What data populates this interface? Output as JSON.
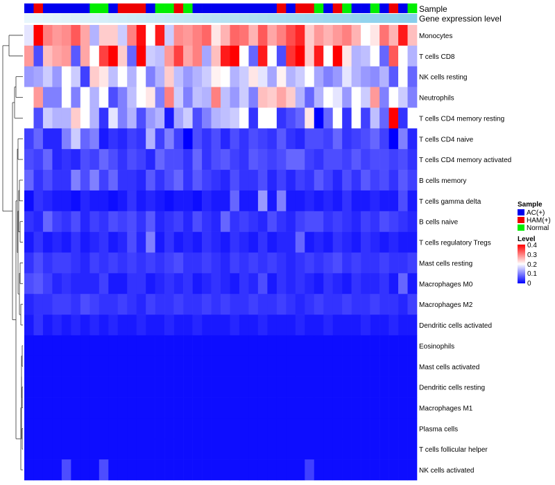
{
  "chart_data": {
    "type": "heatmap",
    "title": "",
    "annotation_labels": {
      "sample": "Sample",
      "gene": "Gene expression level"
    },
    "rows": [
      "Monocytes",
      "T cells CD8",
      "NK cells resting",
      "Neutrophils",
      "T cells CD4 memory resting",
      "T cells CD4 naive",
      "T cells CD4 memory activated",
      "B cells memory",
      "T cells gamma delta",
      "B cells naive",
      "T cells regulatory  Tregs",
      "Mast cells resting",
      "Macrophages M0",
      "Macrophages M2",
      "Dendritic cells activated",
      "Eosinophils",
      "Mast cells activated",
      "Dendritic cells resting",
      "Macrophages M1",
      "Plasma cells",
      "T cells follicular helper",
      "NK cells activated"
    ],
    "sample_groups": [
      "AC(+)",
      "HAM(+)",
      "AC(+)",
      "AC(+)",
      "AC(+)",
      "AC(+)",
      "AC(+)",
      "Normal",
      "Normal",
      "AC(+)",
      "HAM(+)",
      "HAM(+)",
      "HAM(+)",
      "AC(+)",
      "Normal",
      "Normal",
      "HAM(+)",
      "Normal",
      "AC(+)",
      "AC(+)",
      "AC(+)",
      "AC(+)",
      "AC(+)",
      "AC(+)",
      "AC(+)",
      "AC(+)",
      "AC(+)",
      "HAM(+)",
      "AC(+)",
      "HAM(+)",
      "HAM(+)",
      "Normal",
      "AC(+)",
      "HAM(+)",
      "Normal",
      "AC(+)",
      "AC(+)",
      "Normal",
      "AC(+)",
      "HAM(+)",
      "AC(+)",
      "Normal"
    ],
    "values": [
      [
        0.18,
        0.4,
        0.3,
        0.28,
        0.29,
        0.33,
        0.27,
        0.14,
        0.24,
        0.24,
        0.16,
        0.3,
        0.39,
        0.2,
        0.38,
        0.16,
        0.29,
        0.28,
        0.3,
        0.32,
        0.22,
        0.26,
        0.32,
        0.31,
        0.26,
        0.33,
        0.27,
        0.3,
        0.34,
        0.37,
        0.24,
        0.28,
        0.26,
        0.28,
        0.3,
        0.26,
        0.2,
        0.22,
        0.31,
        0.26,
        0.38,
        0.25
      ],
      [
        0.28,
        0.06,
        0.25,
        0.27,
        0.28,
        0.07,
        0.27,
        0.2,
        0.35,
        0.4,
        0.24,
        0.08,
        0.4,
        0.16,
        0.15,
        0.28,
        0.35,
        0.27,
        0.3,
        0.13,
        0.25,
        0.38,
        0.4,
        0.2,
        0.08,
        0.38,
        0.2,
        0.06,
        0.36,
        0.4,
        0.24,
        0.38,
        0.2,
        0.4,
        0.22,
        0.14,
        0.15,
        0.2,
        0.08,
        0.33,
        0.2,
        0.14
      ],
      [
        0.12,
        0.13,
        0.16,
        0.12,
        0.2,
        0.16,
        0.05,
        0.24,
        0.22,
        0.15,
        0.2,
        0.14,
        0.2,
        0.1,
        0.14,
        0.24,
        0.15,
        0.12,
        0.14,
        0.16,
        0.21,
        0.2,
        0.14,
        0.16,
        0.22,
        0.18,
        0.13,
        0.21,
        0.14,
        0.16,
        0.2,
        0.13,
        0.1,
        0.12,
        0.18,
        0.14,
        0.12,
        0.11,
        0.14,
        0.07,
        0.2,
        0.08
      ],
      [
        0.2,
        0.28,
        0.1,
        0.1,
        0.2,
        0.1,
        0.2,
        0.14,
        0.2,
        0.06,
        0.1,
        0.15,
        0.2,
        0.22,
        0.1,
        0.3,
        0.16,
        0.1,
        0.15,
        0.14,
        0.3,
        0.15,
        0.12,
        0.16,
        0.1,
        0.25,
        0.24,
        0.27,
        0.24,
        0.14,
        0.08,
        0.14,
        0.2,
        0.18,
        0.12,
        0.2,
        0.16,
        0.28,
        0.1,
        0.2,
        0.16,
        0.1
      ],
      [
        0.2,
        0.06,
        0.16,
        0.14,
        0.14,
        0.24,
        0.2,
        0.14,
        0.04,
        0.18,
        0.1,
        0.14,
        0.06,
        0.12,
        0.14,
        0.02,
        0.13,
        0.16,
        0.06,
        0.1,
        0.14,
        0.15,
        0.16,
        0.2,
        0.04,
        0.2,
        0.2,
        0.04,
        0.06,
        0.08,
        0.22,
        0.0,
        0.08,
        0.2,
        0.04,
        0.2,
        0.05,
        0.15,
        0.08,
        0.4,
        0.04,
        0.2
      ],
      [
        0.05,
        0.08,
        0.03,
        0.03,
        0.1,
        0.16,
        0.08,
        0.1,
        0.02,
        0.04,
        0.03,
        0.05,
        0.04,
        0.14,
        0.05,
        0.1,
        0.05,
        0.0,
        0.06,
        0.04,
        0.06,
        0.03,
        0.06,
        0.04,
        0.06,
        0.05,
        0.04,
        0.07,
        0.04,
        0.03,
        0.06,
        0.06,
        0.05,
        0.08,
        0.04,
        0.05,
        0.06,
        0.08,
        0.05,
        0.0,
        0.1,
        0.03
      ],
      [
        0.06,
        0.05,
        0.08,
        0.03,
        0.04,
        0.03,
        0.06,
        0.05,
        0.08,
        0.06,
        0.04,
        0.06,
        0.05,
        0.03,
        0.08,
        0.06,
        0.06,
        0.04,
        0.08,
        0.04,
        0.06,
        0.07,
        0.05,
        0.04,
        0.07,
        0.06,
        0.05,
        0.06,
        0.08,
        0.08,
        0.05,
        0.04,
        0.06,
        0.06,
        0.05,
        0.07,
        0.05,
        0.06,
        0.06,
        0.05,
        0.06,
        0.04
      ],
      [
        0.08,
        0.04,
        0.06,
        0.04,
        0.04,
        0.1,
        0.06,
        0.1,
        0.05,
        0.08,
        0.04,
        0.04,
        0.03,
        0.07,
        0.04,
        0.06,
        0.08,
        0.04,
        0.07,
        0.05,
        0.04,
        0.03,
        0.06,
        0.04,
        0.04,
        0.06,
        0.03,
        0.05,
        0.03,
        0.05,
        0.04,
        0.07,
        0.05,
        0.03,
        0.06,
        0.04,
        0.07,
        0.05,
        0.06,
        0.04,
        0.07,
        0.05
      ],
      [
        0.01,
        0.04,
        0.03,
        0.02,
        0.02,
        0.01,
        0.03,
        0.02,
        0.02,
        0.01,
        0.02,
        0.04,
        0.02,
        0.03,
        0.02,
        0.01,
        0.02,
        0.02,
        0.01,
        0.03,
        0.02,
        0.02,
        0.08,
        0.02,
        0.02,
        0.12,
        0.02,
        0.1,
        0.02,
        0.02,
        0.03,
        0.02,
        0.03,
        0.02,
        0.04,
        0.02,
        0.02,
        0.03,
        0.02,
        0.02,
        0.06,
        0.02
      ],
      [
        0.04,
        0.03,
        0.08,
        0.05,
        0.04,
        0.06,
        0.03,
        0.05,
        0.04,
        0.06,
        0.05,
        0.06,
        0.04,
        0.07,
        0.03,
        0.04,
        0.05,
        0.03,
        0.06,
        0.04,
        0.03,
        0.08,
        0.04,
        0.05,
        0.04,
        0.03,
        0.06,
        0.04,
        0.03,
        0.05,
        0.06,
        0.06,
        0.04,
        0.05,
        0.04,
        0.03,
        0.05,
        0.04,
        0.06,
        0.05,
        0.04,
        0.03
      ],
      [
        0.02,
        0.04,
        0.02,
        0.03,
        0.02,
        0.04,
        0.02,
        0.03,
        0.04,
        0.02,
        0.03,
        0.06,
        0.03,
        0.1,
        0.02,
        0.04,
        0.02,
        0.03,
        0.02,
        0.04,
        0.03,
        0.02,
        0.04,
        0.03,
        0.02,
        0.04,
        0.02,
        0.03,
        0.03,
        0.08,
        0.02,
        0.03,
        0.02,
        0.04,
        0.03,
        0.02,
        0.04,
        0.03,
        0.02,
        0.03,
        0.02,
        0.02
      ],
      [
        0.04,
        0.06,
        0.04,
        0.05,
        0.05,
        0.04,
        0.03,
        0.05,
        0.04,
        0.05,
        0.04,
        0.05,
        0.04,
        0.05,
        0.04,
        0.05,
        0.06,
        0.04,
        0.04,
        0.05,
        0.04,
        0.03,
        0.05,
        0.04,
        0.05,
        0.04,
        0.05,
        0.04,
        0.03,
        0.04,
        0.05,
        0.04,
        0.05,
        0.06,
        0.04,
        0.05,
        0.04,
        0.04,
        0.05,
        0.04,
        0.04,
        0.05
      ],
      [
        0.06,
        0.07,
        0.05,
        0.03,
        0.04,
        0.03,
        0.03,
        0.03,
        0.05,
        0.02,
        0.02,
        0.04,
        0.04,
        0.02,
        0.03,
        0.04,
        0.03,
        0.04,
        0.02,
        0.03,
        0.04,
        0.03,
        0.02,
        0.04,
        0.03,
        0.06,
        0.02,
        0.04,
        0.03,
        0.04,
        0.03,
        0.02,
        0.04,
        0.03,
        0.02,
        0.04,
        0.03,
        0.03,
        0.04,
        0.02,
        0.08,
        0.02
      ],
      [
        0.03,
        0.04,
        0.04,
        0.05,
        0.05,
        0.04,
        0.06,
        0.05,
        0.04,
        0.04,
        0.05,
        0.04,
        0.03,
        0.05,
        0.04,
        0.04,
        0.05,
        0.04,
        0.04,
        0.05,
        0.04,
        0.05,
        0.04,
        0.04,
        0.05,
        0.04,
        0.04,
        0.05,
        0.04,
        0.03,
        0.04,
        0.05,
        0.04,
        0.04,
        0.05,
        0.04,
        0.04,
        0.05,
        0.04,
        0.04,
        0.03,
        0.05
      ],
      [
        0.02,
        0.04,
        0.02,
        0.03,
        0.02,
        0.03,
        0.02,
        0.03,
        0.02,
        0.03,
        0.02,
        0.02,
        0.03,
        0.02,
        0.02,
        0.03,
        0.02,
        0.02,
        0.03,
        0.02,
        0.02,
        0.02,
        0.03,
        0.02,
        0.02,
        0.03,
        0.02,
        0.02,
        0.02,
        0.03,
        0.02,
        0.02,
        0.03,
        0.02,
        0.02,
        0.02,
        0.03,
        0.02,
        0.02,
        0.03,
        0.02,
        0.02
      ],
      [
        0.01,
        0.01,
        0.01,
        0.01,
        0.01,
        0.01,
        0.01,
        0.01,
        0.01,
        0.01,
        0.01,
        0.01,
        0.01,
        0.01,
        0.01,
        0.01,
        0.01,
        0.01,
        0.01,
        0.01,
        0.01,
        0.01,
        0.01,
        0.01,
        0.01,
        0.01,
        0.01,
        0.01,
        0.01,
        0.01,
        0.01,
        0.01,
        0.01,
        0.01,
        0.01,
        0.01,
        0.01,
        0.01,
        0.01,
        0.01,
        0.01,
        0.01
      ],
      [
        0.01,
        0.01,
        0.01,
        0.01,
        0.01,
        0.01,
        0.01,
        0.01,
        0.01,
        0.01,
        0.01,
        0.01,
        0.01,
        0.01,
        0.01,
        0.01,
        0.01,
        0.01,
        0.01,
        0.01,
        0.01,
        0.01,
        0.01,
        0.01,
        0.01,
        0.01,
        0.01,
        0.01,
        0.01,
        0.01,
        0.01,
        0.01,
        0.01,
        0.01,
        0.01,
        0.01,
        0.01,
        0.01,
        0.01,
        0.01,
        0.01,
        0.01
      ],
      [
        0.01,
        0.01,
        0.01,
        0.01,
        0.01,
        0.01,
        0.01,
        0.01,
        0.01,
        0.01,
        0.01,
        0.01,
        0.01,
        0.01,
        0.01,
        0.01,
        0.01,
        0.01,
        0.01,
        0.01,
        0.01,
        0.01,
        0.01,
        0.01,
        0.01,
        0.01,
        0.01,
        0.01,
        0.01,
        0.01,
        0.01,
        0.01,
        0.01,
        0.01,
        0.01,
        0.01,
        0.01,
        0.01,
        0.01,
        0.01,
        0.01,
        0.01
      ],
      [
        0.01,
        0.01,
        0.01,
        0.01,
        0.01,
        0.01,
        0.01,
        0.01,
        0.01,
        0.01,
        0.01,
        0.01,
        0.01,
        0.01,
        0.01,
        0.01,
        0.01,
        0.01,
        0.01,
        0.01,
        0.01,
        0.01,
        0.01,
        0.01,
        0.01,
        0.01,
        0.01,
        0.01,
        0.01,
        0.01,
        0.01,
        0.01,
        0.01,
        0.01,
        0.01,
        0.01,
        0.01,
        0.01,
        0.01,
        0.01,
        0.01,
        0.01
      ],
      [
        0.01,
        0.01,
        0.01,
        0.01,
        0.01,
        0.01,
        0.01,
        0.01,
        0.01,
        0.01,
        0.01,
        0.01,
        0.01,
        0.01,
        0.01,
        0.01,
        0.01,
        0.01,
        0.01,
        0.01,
        0.01,
        0.01,
        0.01,
        0.01,
        0.01,
        0.01,
        0.01,
        0.01,
        0.01,
        0.01,
        0.01,
        0.01,
        0.01,
        0.01,
        0.01,
        0.01,
        0.01,
        0.01,
        0.01,
        0.01,
        0.01,
        0.01
      ],
      [
        0.01,
        0.01,
        0.01,
        0.01,
        0.01,
        0.01,
        0.01,
        0.01,
        0.01,
        0.01,
        0.01,
        0.01,
        0.01,
        0.01,
        0.01,
        0.01,
        0.01,
        0.01,
        0.01,
        0.01,
        0.01,
        0.01,
        0.01,
        0.01,
        0.01,
        0.01,
        0.01,
        0.01,
        0.01,
        0.01,
        0.01,
        0.01,
        0.01,
        0.01,
        0.01,
        0.01,
        0.01,
        0.01,
        0.01,
        0.01,
        0.01,
        0.01
      ],
      [
        0.01,
        0.01,
        0.01,
        0.01,
        0.06,
        0.01,
        0.01,
        0.01,
        0.06,
        0.01,
        0.01,
        0.01,
        0.01,
        0.01,
        0.01,
        0.01,
        0.01,
        0.01,
        0.01,
        0.01,
        0.01,
        0.01,
        0.01,
        0.01,
        0.01,
        0.01,
        0.01,
        0.01,
        0.01,
        0.01,
        0.05,
        0.01,
        0.01,
        0.01,
        0.01,
        0.01,
        0.01,
        0.01,
        0.01,
        0.01,
        0.01,
        0.01
      ]
    ],
    "legend_sample": {
      "title": "Sample",
      "items": [
        {
          "label": "AC(+)",
          "color": "#0000ee"
        },
        {
          "label": "HAM(+)",
          "color": "#ee0000"
        },
        {
          "label": "Normal",
          "color": "#00ee00"
        }
      ]
    },
    "legend_level": {
      "title": "Level",
      "ticks": [
        "0.4",
        "0.3",
        "0.2",
        "0.1",
        "0"
      ],
      "range": [
        0,
        0.4
      ]
    },
    "gene_bar_color": "#87ceeb",
    "color_scale": {
      "low": "#0000ff",
      "mid": "#ffffff",
      "high": "#ff0000"
    }
  }
}
